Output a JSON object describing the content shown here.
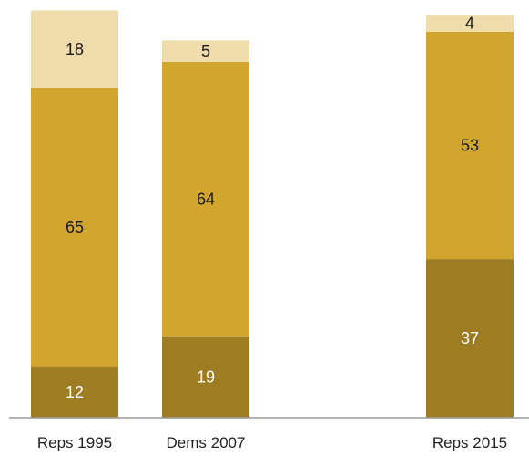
{
  "chart_data": {
    "type": "bar",
    "stacked": true,
    "categories": [
      "Reps 1995",
      "Dems 2007",
      "Reps 2015"
    ],
    "series": [
      {
        "values": [
          12,
          19,
          37
        ],
        "color": "#9e7c22",
        "label_color": "#ffffff"
      },
      {
        "values": [
          65,
          64,
          53
        ],
        "color": "#d2a52e",
        "label_color": "#1a1a1a"
      },
      {
        "values": [
          18,
          5,
          4
        ],
        "color": "#efdcaa",
        "label_color": "#1a1a1a"
      }
    ],
    "ylim": [
      0,
      95
    ],
    "grid": false,
    "legend": "none",
    "baseline_color": "#9a9a9a"
  }
}
